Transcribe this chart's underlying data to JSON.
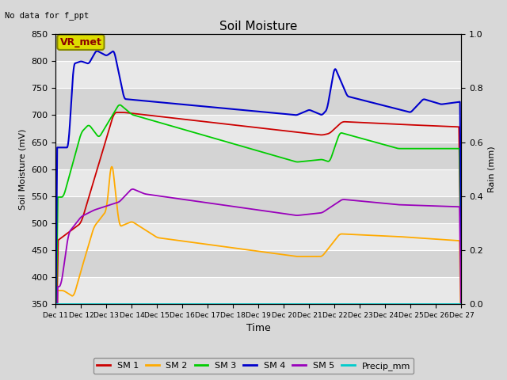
{
  "title": "Soil Moisture",
  "xlabel": "Time",
  "ylabel_left": "Soil Moisture (mV)",
  "ylabel_right": "Rain (mm)",
  "annotation_text": "No data for f_ppt",
  "vr_label": "VR_met",
  "ylim_left": [
    350,
    850
  ],
  "ylim_right": [
    0.0,
    1.0
  ],
  "fig_bg_color": "#d8d8d8",
  "plot_bg_color": "#e0e0e0",
  "colors": {
    "SM1": "#cc0000",
    "SM2": "#ffaa00",
    "SM3": "#00cc00",
    "SM4": "#0000cc",
    "SM5": "#9900bb",
    "Precip": "#00cccc"
  },
  "yticks": [
    350,
    400,
    450,
    500,
    550,
    600,
    650,
    700,
    750,
    800,
    850
  ],
  "legend_labels": [
    "SM 1",
    "SM 2",
    "SM 3",
    "SM 4",
    "SM 5",
    "Precip_mm"
  ]
}
